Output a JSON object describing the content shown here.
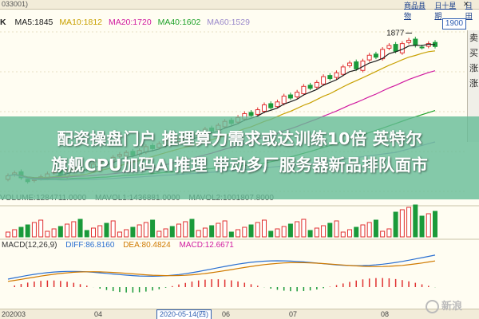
{
  "window": {
    "code": "033001)",
    "tabs": [
      "商品县物",
      "日十星期",
      "日 田"
    ],
    "close": "✕"
  },
  "ma_row": {
    "k": "K",
    "ma5": "MA5:1845",
    "ma10": "MA10:1812",
    "ma20": "MA20:1720",
    "ma40": "MA40:1602",
    "ma60": "MA60:1529",
    "colors": {
      "ma5": "#1a1a1a",
      "ma10": "#c8a000",
      "ma20": "#d01aa0",
      "ma40": "#1fa22a",
      "ma60": "#9b8acb"
    }
  },
  "current_price": "1900",
  "peak_label": "1877",
  "side_panel": {
    "items": [
      "卖",
      "买",
      "涨",
      "涨"
    ]
  },
  "overlay": {
    "headline": "配资操盘门户 推理算力需求或达训练10倍 英特尔\n旗舰CPU加码AI推理 带动多厂服务器新品排队面市"
  },
  "volume_row": {
    "label": "VOLUME:1284711.0000",
    "mavol1": "MAVOL1:1436881.0000",
    "mavol2": "MAVOL2:1001807.8000"
  },
  "macd_row": {
    "label": "MACD(12,26,9)",
    "diff": "DIFF:86.8160",
    "dea": "DEA:80.4824",
    "macd": "MACD:12.6671",
    "colors": {
      "diff": "#2a6fd1",
      "dea": "#d07a00",
      "macd": "#d01aa0"
    }
  },
  "dates": {
    "d1": "202003",
    "d2": "04",
    "selected": "2020-05-14(四)",
    "d3": "06",
    "d4": "07",
    "d5": "08"
  },
  "watermark": "新浪",
  "chart_data": {
    "type": "candlestick",
    "series": [
      {
        "name": "MA5",
        "color": "#1a1a1a"
      },
      {
        "name": "MA10",
        "color": "#c8a000"
      },
      {
        "name": "MA20",
        "color": "#d01aa0"
      },
      {
        "name": "MA40",
        "color": "#1fa22a"
      },
      {
        "name": "MA60",
        "color": "#9b8acb"
      }
    ],
    "close": [
      1180,
      1195,
      1170,
      1150,
      1160,
      1175,
      1190,
      1200,
      1185,
      1205,
      1230,
      1220,
      1210,
      1240,
      1260,
      1250,
      1275,
      1290,
      1300,
      1285,
      1310,
      1330,
      1320,
      1345,
      1360,
      1350,
      1370,
      1390,
      1380,
      1400,
      1420,
      1410,
      1440,
      1460,
      1450,
      1480,
      1500,
      1490,
      1520,
      1545,
      1530,
      1560,
      1590,
      1580,
      1610,
      1640,
      1630,
      1660,
      1690,
      1680,
      1710,
      1740,
      1760,
      1730,
      1770,
      1800,
      1790,
      1830,
      1850,
      1820,
      1860,
      1877,
      1850,
      1840,
      1860,
      1845
    ],
    "peak": 1877,
    "last": 1900
  }
}
